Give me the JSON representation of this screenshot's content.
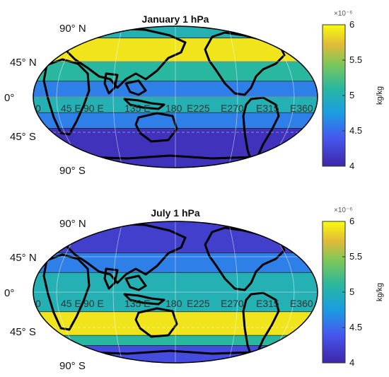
{
  "chart_data": [
    {
      "type": "heatmap",
      "title": "January 1 hPa",
      "lat_labels": [
        "90° N",
        "45° N",
        "0°",
        "45° S",
        "90° S"
      ],
      "lon_labels": [
        "0",
        "45 E",
        "90 E",
        "135 E",
        "180",
        "E225",
        "E270",
        "E315",
        "E360"
      ],
      "colorbar": {
        "label": "kg/kg",
        "exponent": "×10⁻⁶",
        "range": [
          4,
          6
        ],
        "ticks": [
          "4",
          "4.5",
          "5",
          "5.5",
          "6"
        ]
      },
      "bands": [
        {
          "lat_north": 90,
          "lat_south": 75,
          "value": 5.0
        },
        {
          "lat_north": 75,
          "lat_south": 45,
          "value": 5.9
        },
        {
          "lat_north": 45,
          "lat_south": 20,
          "value": 5.1
        },
        {
          "lat_north": 20,
          "lat_south": 0,
          "value": 4.6
        },
        {
          "lat_north": 0,
          "lat_south": -20,
          "value": 5.0
        },
        {
          "lat_north": -20,
          "lat_south": -40,
          "value": 4.6
        },
        {
          "lat_north": -40,
          "lat_south": -90,
          "value": 4.1
        }
      ]
    },
    {
      "type": "heatmap",
      "title": "July 1 hPa",
      "lat_labels": [
        "90° N",
        "45° N",
        "0°",
        "45° S",
        "90° S"
      ],
      "lon_labels": [
        "0",
        "45 E",
        "90 E",
        "135 E",
        "180",
        "E225",
        "E270",
        "E315",
        "E360"
      ],
      "colorbar": {
        "label": "kg/kg",
        "exponent": "×10⁻⁶",
        "range": [
          4,
          6
        ],
        "ticks": [
          "4",
          "4.5",
          "5",
          "5.5",
          "6"
        ]
      },
      "bands": [
        {
          "lat_north": 90,
          "lat_south": 50,
          "value": 4.2
        },
        {
          "lat_north": 50,
          "lat_south": 25,
          "value": 4.6
        },
        {
          "lat_north": 25,
          "lat_south": -25,
          "value": 5.0
        },
        {
          "lat_north": -25,
          "lat_south": -55,
          "value": 5.9
        },
        {
          "lat_north": -55,
          "lat_south": -68,
          "value": 5.1
        },
        {
          "lat_north": -68,
          "lat_south": -90,
          "value": 4.3
        }
      ]
    }
  ]
}
